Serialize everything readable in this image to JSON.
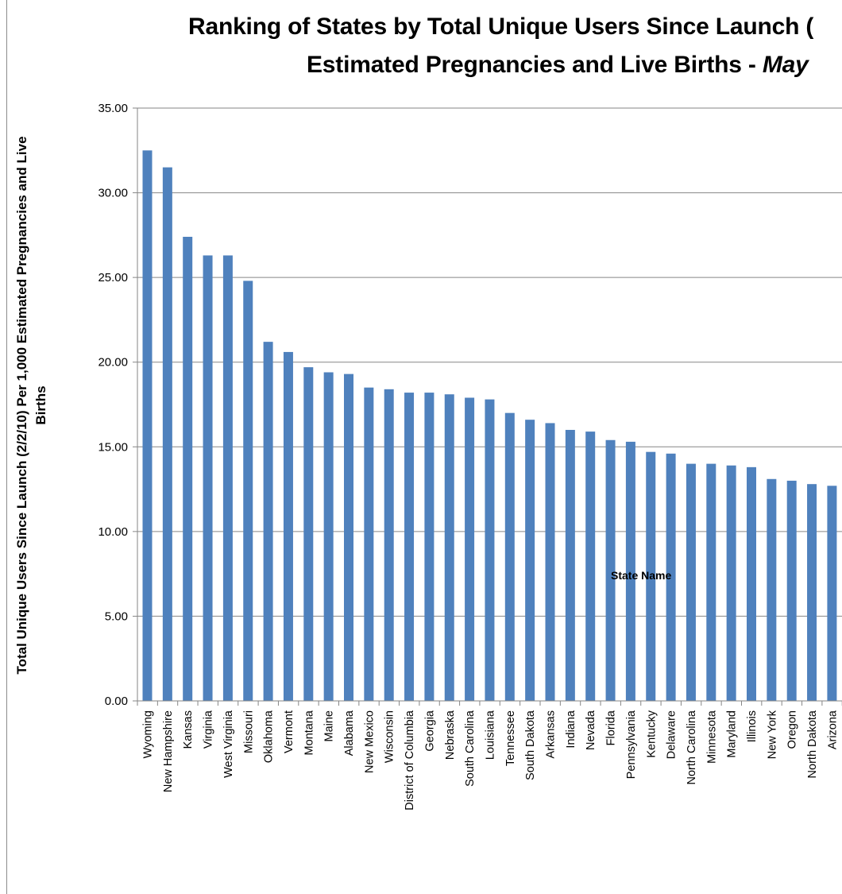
{
  "chart_data": {
    "type": "bar",
    "title_line1": "Ranking of States by Total Unique Users Since Launch (",
    "title_line2_prefix": "Estimated Pregnancies and Live Births - ",
    "title_line2_em": "May",
    "ylabel_line1": "Total Unique Users Since Launch (2/2/10) Per 1,000 Estimated  Pregnancies and Live",
    "ylabel_line2": "Births",
    "xlabel": "State Name",
    "ylim": [
      0,
      35
    ],
    "yticks": [
      "0.00",
      "5.00",
      "10.00",
      "15.00",
      "20.00",
      "25.00",
      "30.00",
      "35.00"
    ],
    "grid": true,
    "bar_color": "#4f81bd",
    "categories": [
      "Wyoming",
      "New Hampshire",
      "Kansas",
      "Virginia",
      "West Virginia",
      "Missouri",
      "Oklahoma",
      "Vermont",
      "Montana",
      "Maine",
      "Alabama",
      "New Mexico",
      "Wisconsin",
      "District of Columbia",
      "Georgia",
      "Nebraska",
      "South Carolina",
      "Louisiana",
      "Tennessee",
      "South Dakota",
      "Arkansas",
      "Indiana",
      "Nevada",
      "Florida",
      "Pennsylvania",
      "Kentucky",
      "Delaware",
      "North Carolina",
      "Minnesota",
      "Maryland",
      "Illinois",
      "New York",
      "Oregon",
      "North Dakota",
      "Arizona"
    ],
    "values": [
      32.5,
      31.5,
      27.4,
      26.3,
      26.3,
      24.8,
      21.2,
      20.6,
      19.7,
      19.4,
      19.3,
      18.5,
      18.4,
      18.2,
      18.2,
      18.1,
      17.9,
      17.8,
      17.0,
      16.6,
      16.4,
      16.0,
      15.9,
      15.4,
      15.3,
      14.7,
      14.6,
      14.0,
      14.0,
      13.9,
      13.8,
      13.1,
      13.0,
      12.8,
      12.7
    ]
  }
}
